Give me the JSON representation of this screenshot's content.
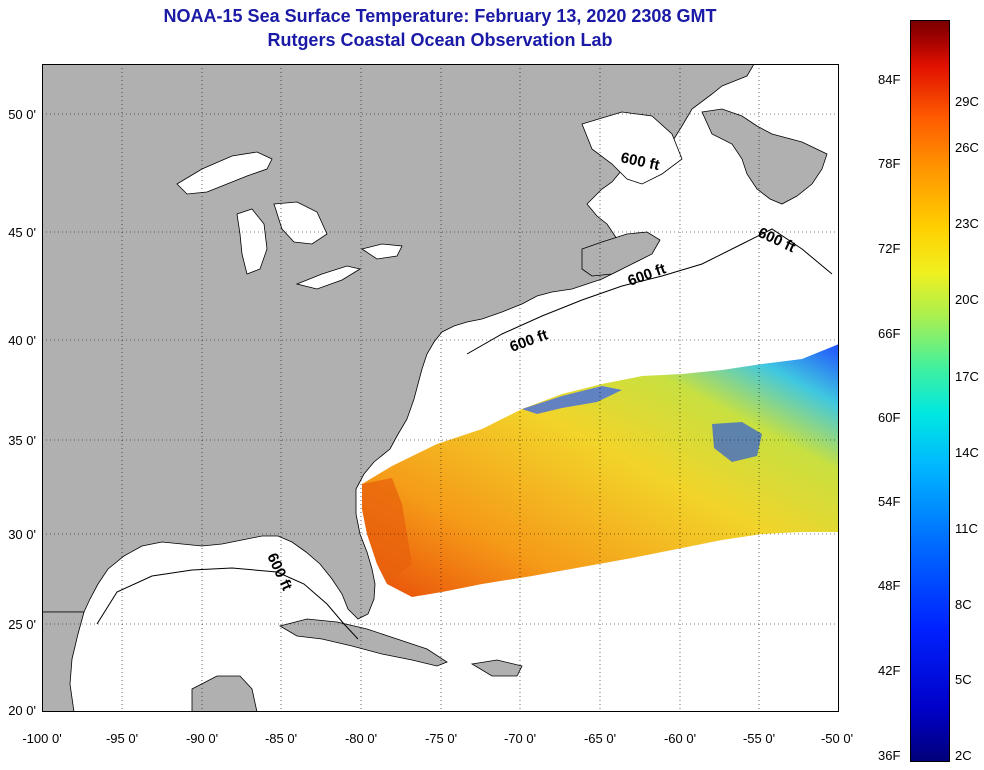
{
  "title": "NOAA-15 Sea Surface Temperature:  February 13, 2020 2308 GMT",
  "subtitle": "Rutgers Coastal Ocean Observation Lab",
  "latitude_labels": [
    "50 0'",
    "45 0'",
    "40 0'",
    "35 0'",
    "30 0'",
    "25 0'",
    "20 0'"
  ],
  "longitude_labels": [
    "-100 0'",
    "-95 0'",
    "-90 0'",
    "-85 0'",
    "-80 0'",
    "-75 0'",
    "-70 0'",
    "-65 0'",
    "-60 0'",
    "-55 0'",
    "-50 0'"
  ],
  "contour_labels": [
    "600 ft",
    "600 ft",
    "600 ft",
    "600 ft",
    "600 ft"
  ],
  "colorbar": {
    "fahrenheit_labels": [
      "84F",
      "78F",
      "72F",
      "66F",
      "60F",
      "54F",
      "48F",
      "42F",
      "36F"
    ],
    "celsius_labels": [
      "29C",
      "26C",
      "23C",
      "20C",
      "17C",
      "14C",
      "11C",
      "8C",
      "5C",
      "2C"
    ]
  },
  "colors": {
    "title": "#1a1aa6",
    "land": "#b0b0b0",
    "ocean": "#ffffff",
    "sst_warm": "#f07a10",
    "sst_mid": "#f0c820",
    "sst_cool": "#2060ff"
  }
}
